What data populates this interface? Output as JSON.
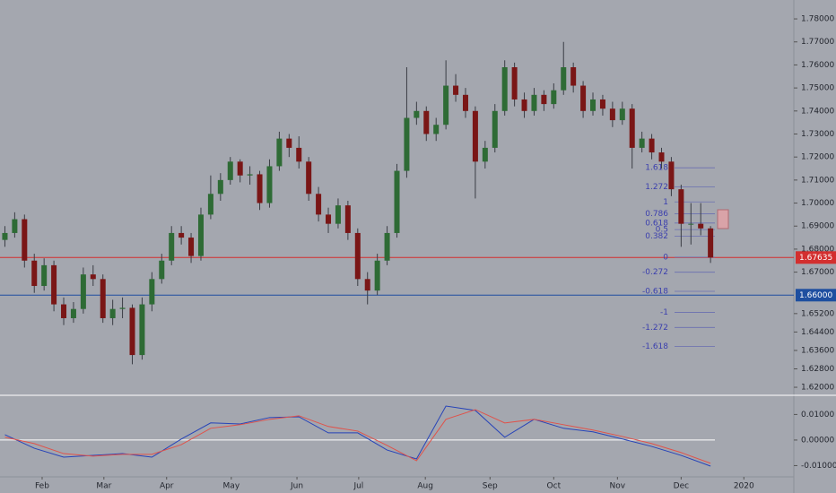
{
  "chart_data": [
    {
      "type": "candlestick",
      "up_color": "#2e6b35",
      "down_color": "#7a1616",
      "wick_color": "#3a3d45",
      "xlim": [
        -0.5,
        80.5
      ],
      "ylim": [
        1.6169,
        1.7882
      ],
      "yticks": [
        {
          "value": 1.78,
          "label": "1.78000"
        },
        {
          "value": 1.77,
          "label": "1.77000"
        },
        {
          "value": 1.76,
          "label": "1.76000"
        },
        {
          "value": 1.75,
          "label": "1.75000"
        },
        {
          "value": 1.74,
          "label": "1.74000"
        },
        {
          "value": 1.73,
          "label": "1.73000"
        },
        {
          "value": 1.72,
          "label": "1.72000"
        },
        {
          "value": 1.71,
          "label": "1.71000"
        },
        {
          "value": 1.7,
          "label": "1.70000"
        },
        {
          "value": 1.69,
          "label": "1.69000"
        },
        {
          "value": 1.68,
          "label": "1.68000"
        },
        {
          "value": 1.67,
          "label": "1.67000"
        },
        {
          "value": 1.652,
          "label": "1.65200"
        },
        {
          "value": 1.644,
          "label": "1.64400"
        },
        {
          "value": 1.636,
          "label": "1.63600"
        },
        {
          "value": 1.628,
          "label": "1.62800"
        },
        {
          "value": 1.62,
          "label": "1.62000"
        }
      ],
      "candles": [
        [
          1.684,
          1.69,
          1.681,
          1.687
        ],
        [
          1.687,
          1.696,
          1.685,
          1.693
        ],
        [
          1.693,
          1.695,
          1.672,
          1.675
        ],
        [
          1.675,
          1.678,
          1.661,
          1.664
        ],
        [
          1.664,
          1.676,
          1.662,
          1.673
        ],
        [
          1.673,
          1.675,
          1.653,
          1.656
        ],
        [
          1.656,
          1.659,
          1.647,
          1.65
        ],
        [
          1.65,
          1.657,
          1.648,
          1.654
        ],
        [
          1.654,
          1.672,
          1.652,
          1.669
        ],
        [
          1.669,
          1.673,
          1.664,
          1.667
        ],
        [
          1.667,
          1.669,
          1.648,
          1.65
        ],
        [
          1.65,
          1.658,
          1.647,
          1.654
        ],
        [
          1.654,
          1.659,
          1.65,
          1.6545
        ],
        [
          1.6545,
          1.656,
          1.63,
          1.634
        ],
        [
          1.634,
          1.659,
          1.632,
          1.656
        ],
        [
          1.656,
          1.67,
          1.653,
          1.667
        ],
        [
          1.667,
          1.678,
          1.665,
          1.675
        ],
        [
          1.675,
          1.69,
          1.673,
          1.687
        ],
        [
          1.687,
          1.69,
          1.682,
          1.685
        ],
        [
          1.685,
          1.687,
          1.674,
          1.677
        ],
        [
          1.677,
          1.698,
          1.675,
          1.695
        ],
        [
          1.695,
          1.712,
          1.693,
          1.704
        ],
        [
          1.704,
          1.713,
          1.701,
          1.71
        ],
        [
          1.71,
          1.72,
          1.708,
          1.718
        ],
        [
          1.718,
          1.719,
          1.709,
          1.712
        ],
        [
          1.712,
          1.716,
          1.708,
          1.7125
        ],
        [
          1.7125,
          1.714,
          1.697,
          1.7
        ],
        [
          1.7,
          1.719,
          1.698,
          1.716
        ],
        [
          1.716,
          1.731,
          1.714,
          1.728
        ],
        [
          1.728,
          1.73,
          1.72,
          1.724
        ],
        [
          1.724,
          1.729,
          1.715,
          1.718
        ],
        [
          1.718,
          1.72,
          1.701,
          1.704
        ],
        [
          1.704,
          1.707,
          1.692,
          1.695
        ],
        [
          1.695,
          1.698,
          1.687,
          1.691
        ],
        [
          1.691,
          1.702,
          1.689,
          1.699
        ],
        [
          1.699,
          1.701,
          1.684,
          1.687
        ],
        [
          1.687,
          1.689,
          1.664,
          1.667
        ],
        [
          1.667,
          1.67,
          1.656,
          1.662
        ],
        [
          1.662,
          1.678,
          1.66,
          1.675
        ],
        [
          1.675,
          1.69,
          1.673,
          1.687
        ],
        [
          1.687,
          1.717,
          1.685,
          1.714
        ],
        [
          1.714,
          1.759,
          1.711,
          1.737
        ],
        [
          1.737,
          1.744,
          1.734,
          1.74
        ],
        [
          1.74,
          1.742,
          1.727,
          1.73
        ],
        [
          1.73,
          1.737,
          1.727,
          1.734
        ],
        [
          1.734,
          1.762,
          1.732,
          1.751
        ],
        [
          1.751,
          1.756,
          1.744,
          1.747
        ],
        [
          1.747,
          1.75,
          1.737,
          1.74
        ],
        [
          1.74,
          1.742,
          1.702,
          1.718
        ],
        [
          1.718,
          1.727,
          1.715,
          1.724
        ],
        [
          1.724,
          1.743,
          1.722,
          1.74
        ],
        [
          1.74,
          1.762,
          1.738,
          1.759
        ],
        [
          1.759,
          1.761,
          1.742,
          1.745
        ],
        [
          1.745,
          1.748,
          1.737,
          1.74
        ],
        [
          1.74,
          1.75,
          1.738,
          1.747
        ],
        [
          1.747,
          1.749,
          1.74,
          1.743
        ],
        [
          1.743,
          1.752,
          1.741,
          1.749
        ],
        [
          1.749,
          1.77,
          1.747,
          1.759
        ],
        [
          1.759,
          1.761,
          1.748,
          1.751
        ],
        [
          1.751,
          1.753,
          1.737,
          1.74
        ],
        [
          1.74,
          1.748,
          1.738,
          1.745
        ],
        [
          1.745,
          1.747,
          1.738,
          1.741
        ],
        [
          1.741,
          1.744,
          1.733,
          1.736
        ],
        [
          1.736,
          1.744,
          1.734,
          1.741
        ],
        [
          1.741,
          1.743,
          1.715,
          1.724
        ],
        [
          1.724,
          1.731,
          1.722,
          1.728
        ],
        [
          1.728,
          1.73,
          1.719,
          1.722
        ],
        [
          1.722,
          1.724,
          1.715,
          1.718
        ],
        [
          1.718,
          1.72,
          1.703,
          1.706
        ],
        [
          1.706,
          1.708,
          1.681,
          1.691
        ],
        [
          1.691,
          1.7,
          1.682,
          1.691
        ],
        [
          1.691,
          1.7,
          1.686,
          1.689
        ],
        [
          1.689,
          1.69,
          1.674,
          1.6764
        ]
      ],
      "fib": {
        "levels": [
          1.618,
          1.272,
          1,
          0.786,
          0.618,
          0.5,
          0.382,
          0,
          -0.272,
          -0.618,
          -1,
          -1.272,
          -1.618
        ],
        "base": 1.6765,
        "top": 1.7005,
        "color": "#3b3fae"
      },
      "price_lines": [
        {
          "value": 1.67635,
          "label": "1.67635",
          "color": "#d32f2f"
        },
        {
          "value": 1.66,
          "label": "1.66000",
          "color": "#1e4fa0"
        }
      ]
    },
    {
      "type": "line",
      "xlim": [
        -0.5,
        80.5
      ],
      "ylim": [
        -0.0144,
        0.0168
      ],
      "yticks": [
        {
          "value": 0.01,
          "label": "0.01000"
        },
        {
          "value": 0,
          "label": "0.00000"
        },
        {
          "value": -0.01,
          "label": "-0.01000"
        }
      ],
      "xticks": [
        {
          "value": 3.8,
          "label": "Feb"
        },
        {
          "value": 10.1,
          "label": "Mar"
        },
        {
          "value": 16.5,
          "label": "Apr"
        },
        {
          "value": 23.1,
          "label": "May"
        },
        {
          "value": 29.8,
          "label": "Jun"
        },
        {
          "value": 36.1,
          "label": "Jul"
        },
        {
          "value": 42.9,
          "label": "Aug"
        },
        {
          "value": 49.5,
          "label": "Sep"
        },
        {
          "value": 56,
          "label": "Oct"
        },
        {
          "value": 62.5,
          "label": "Nov"
        },
        {
          "value": 69,
          "label": "Dec"
        },
        {
          "value": 75.4,
          "label": "2020"
        }
      ],
      "x": [
        0,
        3,
        6,
        9,
        12,
        15,
        18,
        21,
        24,
        27,
        30,
        33,
        36,
        39,
        42,
        45,
        48,
        51,
        54,
        57,
        60,
        63,
        66,
        69,
        72
      ],
      "series": [
        {
          "color": "#2643b8",
          "values": [
            0.0021,
            -0.0032,
            -0.0067,
            -0.006,
            -0.0053,
            -0.0067,
            0.0004,
            0.0067,
            0.0063,
            0.0088,
            0.0091,
            0.0028,
            0.0028,
            -0.0039,
            -0.0074,
            0.0133,
            0.0116,
            0.0011,
            0.0081,
            0.0046,
            0.0032,
            0.0004,
            -0.0025,
            -0.006,
            -0.0102
          ]
        },
        {
          "color": "#e0524a",
          "values": [
            0.0011,
            -0.0014,
            -0.0053,
            -0.0063,
            -0.0056,
            -0.0056,
            -0.0018,
            0.0046,
            0.006,
            0.0081,
            0.0095,
            0.0053,
            0.0035,
            -0.0021,
            -0.0081,
            0.0081,
            0.0119,
            0.0067,
            0.0081,
            0.006,
            0.0039,
            0.0014,
            -0.0014,
            -0.0049,
            -0.0091
          ]
        }
      ]
    }
  ]
}
